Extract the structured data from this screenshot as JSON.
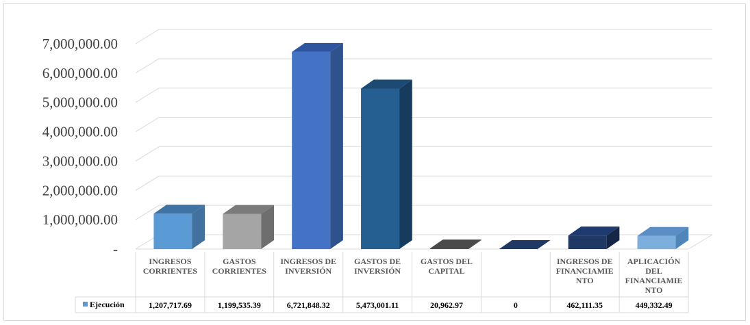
{
  "chart_data": {
    "type": "bar",
    "style": "3d-column-with-data-table",
    "categories": [
      [
        "INGRESOS",
        "CORRIENTES"
      ],
      [
        "GASTOS",
        "CORRIENTES"
      ],
      [
        "INGRESOS DE",
        "INVERSIÓN"
      ],
      [
        "GASTOS DE",
        "INVERSIÓN"
      ],
      [
        "GASTOS DEL",
        "CAPITAL"
      ],
      [],
      [
        "INGRESOS DE",
        "FINANCIAMIE",
        "NTO"
      ],
      [
        "APLICACIÓN",
        "DEL",
        "FINANCIAMIE",
        "NTO"
      ]
    ],
    "series": [
      {
        "name": "Ejecución",
        "values": [
          1207717.69,
          1199535.39,
          6721848.32,
          5473001.11,
          20962.97,
          0,
          462111.35,
          449332.49
        ],
        "value_labels": [
          "1,207,717.69",
          "1,199,535.39",
          "6,721,848.32",
          "5,473,001.11",
          "20,962.97",
          "0",
          "462,111.35",
          "449,332.49"
        ]
      }
    ],
    "bar_colors": [
      {
        "front": "#5b9bd5",
        "side": "#41719c",
        "top": "#3f73a3"
      },
      {
        "front": "#a5a5a5",
        "side": "#6e6e6e",
        "top": "#7b7b7b"
      },
      {
        "front": "#4472c4",
        "side": "#2f528f",
        "top": "#2e55a0"
      },
      {
        "front": "#255e91",
        "side": "#173b5c",
        "top": "#1c4a73"
      },
      {
        "front": "#404040",
        "side": "#303030",
        "top": "#4a4a4a"
      },
      {
        "front": "#1f3864",
        "side": "#142544",
        "top": "#1f3864"
      },
      {
        "front": "#203864",
        "side": "#152647",
        "top": "#1e3a70"
      },
      {
        "front": "#7cafdd",
        "side": "#4f85b8",
        "top": "#5a8ec4"
      }
    ],
    "yticks": [
      {
        "value": 0,
        "label": "-"
      },
      {
        "value": 1000000,
        "label": "1,000,000.00"
      },
      {
        "value": 2000000,
        "label": "2,000,000.00"
      },
      {
        "value": 3000000,
        "label": "3,000,000.00"
      },
      {
        "value": 4000000,
        "label": "4,000,000.00"
      },
      {
        "value": 5000000,
        "label": "5,000,000.00"
      },
      {
        "value": 6000000,
        "label": "6,000,000.00"
      },
      {
        "value": 7000000,
        "label": "7,000,000.00"
      }
    ],
    "ylim": [
      0,
      7000000
    ],
    "grid": true,
    "legend_color": "#5b9bd5"
  }
}
